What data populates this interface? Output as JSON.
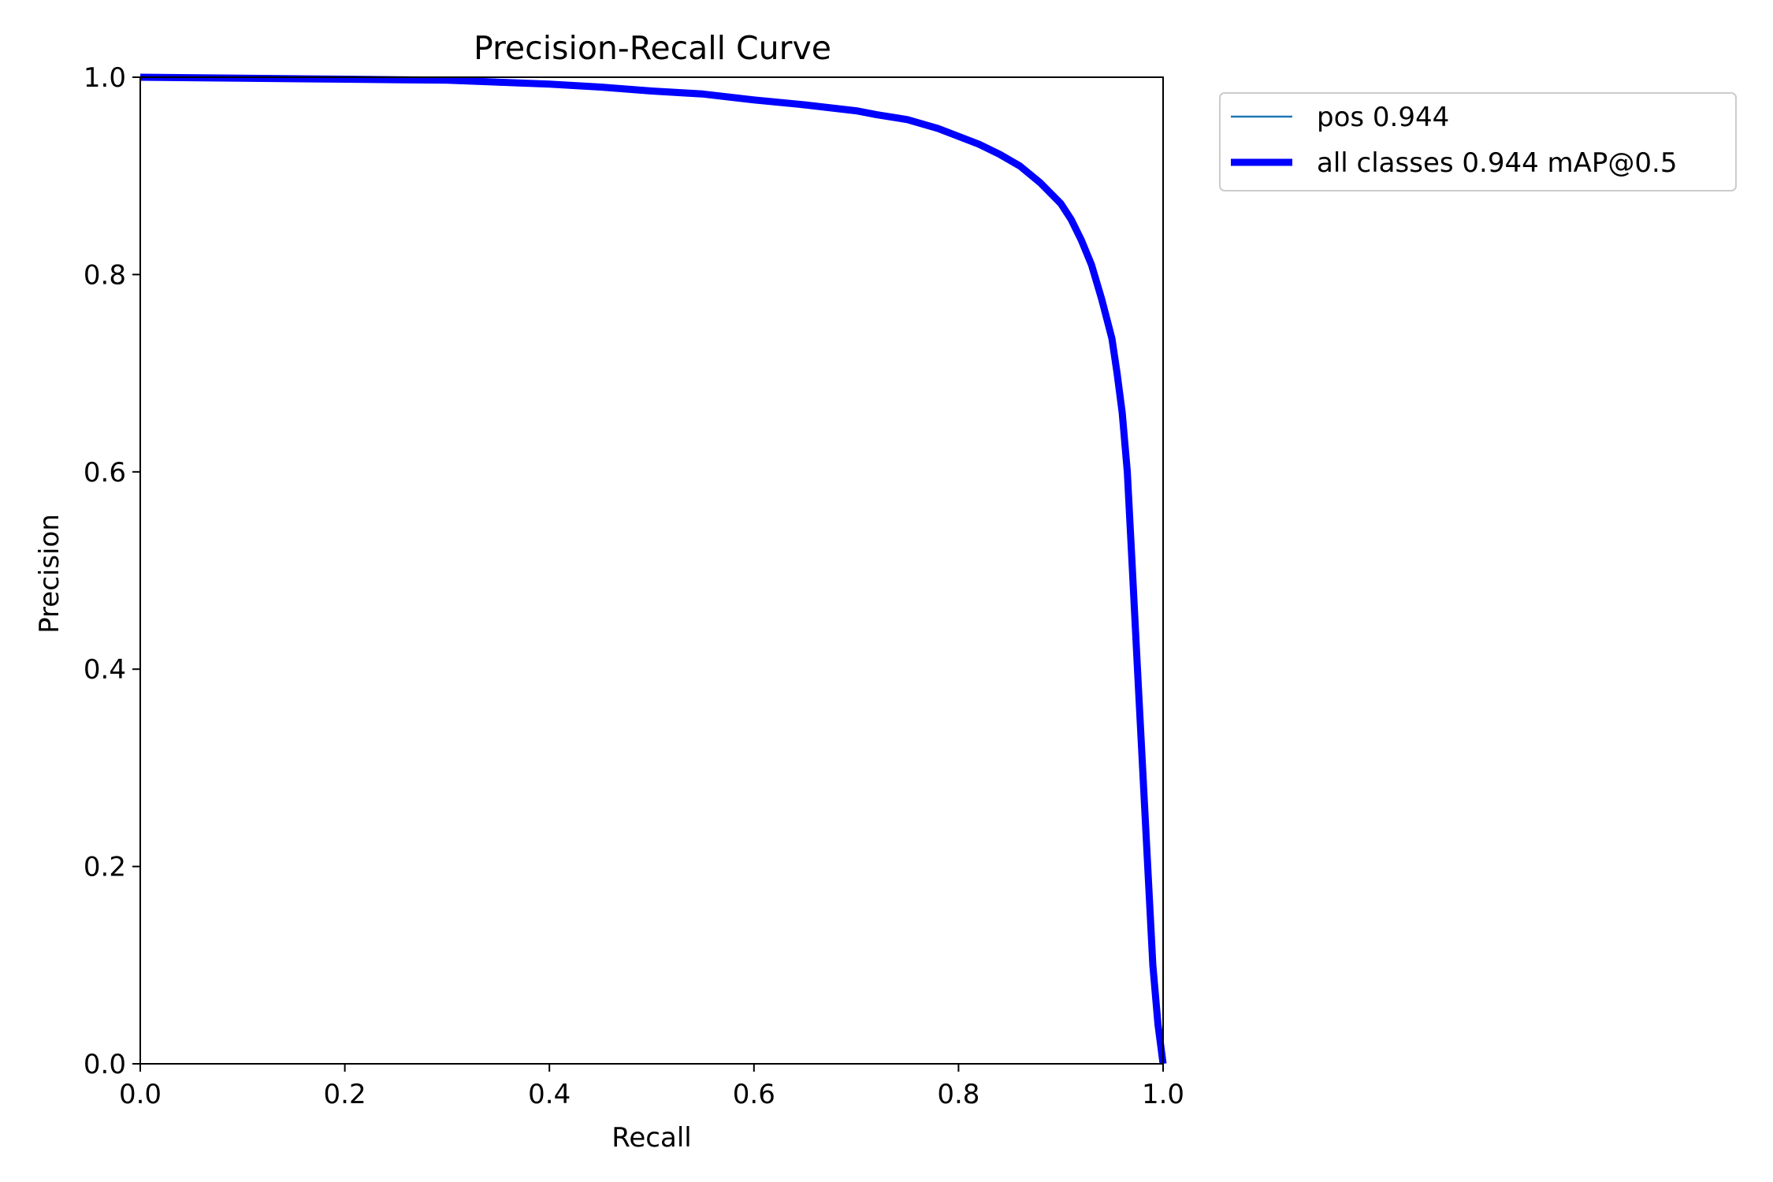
{
  "chart_data": {
    "type": "line",
    "title": "Precision-Recall Curve",
    "xlabel": "Recall",
    "ylabel": "Precision",
    "xlim": [
      0,
      1
    ],
    "ylim": [
      0,
      1
    ],
    "xticks": [
      "0.0",
      "0.2",
      "0.4",
      "0.6",
      "0.8",
      "1.0"
    ],
    "yticks": [
      "0.0",
      "0.2",
      "0.4",
      "0.6",
      "0.8",
      "1.0"
    ],
    "grid": false,
    "legend_position": "outside-top-right",
    "series": [
      {
        "name": "pos 0.944",
        "color": "#1f77b4",
        "line_width": "thin",
        "x": [
          0.0,
          0.1,
          0.2,
          0.3,
          0.35,
          0.4,
          0.45,
          0.5,
          0.55,
          0.6,
          0.65,
          0.7,
          0.72,
          0.75,
          0.78,
          0.8,
          0.82,
          0.84,
          0.86,
          0.88,
          0.9,
          0.91,
          0.92,
          0.93,
          0.94,
          0.95,
          0.955,
          0.96,
          0.965,
          0.97,
          0.975,
          0.98,
          0.985,
          0.99,
          0.995,
          1.0
        ],
        "y": [
          1.0,
          0.999,
          0.998,
          0.997,
          0.995,
          0.993,
          0.99,
          0.986,
          0.983,
          0.977,
          0.972,
          0.966,
          0.962,
          0.957,
          0.948,
          0.94,
          0.932,
          0.922,
          0.91,
          0.893,
          0.872,
          0.856,
          0.835,
          0.81,
          0.775,
          0.735,
          0.7,
          0.66,
          0.6,
          0.5,
          0.4,
          0.3,
          0.2,
          0.1,
          0.04,
          0.0
        ]
      },
      {
        "name": "all classes 0.944 mAP@0.5",
        "color": "#0000ff",
        "line_width": "thick",
        "x": [
          0.0,
          0.1,
          0.2,
          0.3,
          0.35,
          0.4,
          0.45,
          0.5,
          0.55,
          0.6,
          0.65,
          0.7,
          0.72,
          0.75,
          0.78,
          0.8,
          0.82,
          0.84,
          0.86,
          0.88,
          0.9,
          0.91,
          0.92,
          0.93,
          0.94,
          0.95,
          0.955,
          0.96,
          0.965,
          0.97,
          0.975,
          0.98,
          0.985,
          0.99,
          0.995,
          1.0
        ],
        "y": [
          1.0,
          0.999,
          0.998,
          0.997,
          0.995,
          0.993,
          0.99,
          0.986,
          0.983,
          0.977,
          0.972,
          0.966,
          0.962,
          0.957,
          0.948,
          0.94,
          0.932,
          0.922,
          0.91,
          0.893,
          0.872,
          0.856,
          0.835,
          0.81,
          0.775,
          0.735,
          0.7,
          0.66,
          0.6,
          0.5,
          0.4,
          0.3,
          0.2,
          0.1,
          0.04,
          0.0
        ]
      }
    ]
  }
}
